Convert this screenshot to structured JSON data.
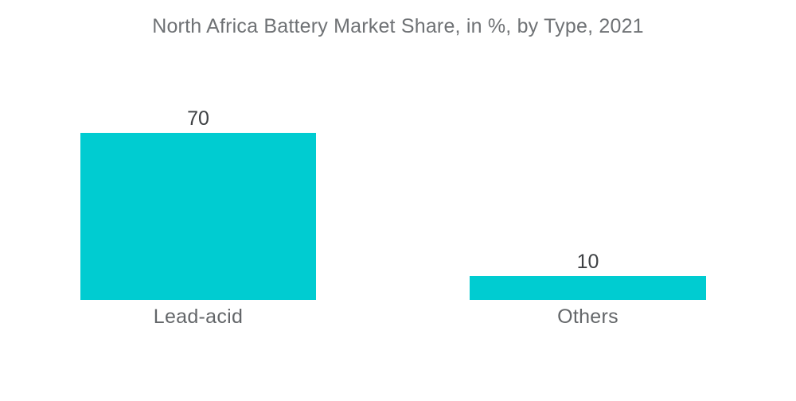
{
  "chart_data": {
    "type": "bar",
    "title": "North Africa Battery Market Share, in %, by Type, 2021",
    "categories": [
      "Lead-acid",
      "Others"
    ],
    "values": [
      70,
      10
    ],
    "unit": "%",
    "bar_color": "#00CCD1",
    "background_color": "#ffffff",
    "title_color": "#6f7275",
    "value_label_color": "#3d4043",
    "category_label_color": "#636669",
    "value_labels_shown": true,
    "axes_shown": false,
    "gridlines": false,
    "legend": "none",
    "ylim": [
      0,
      70
    ]
  }
}
